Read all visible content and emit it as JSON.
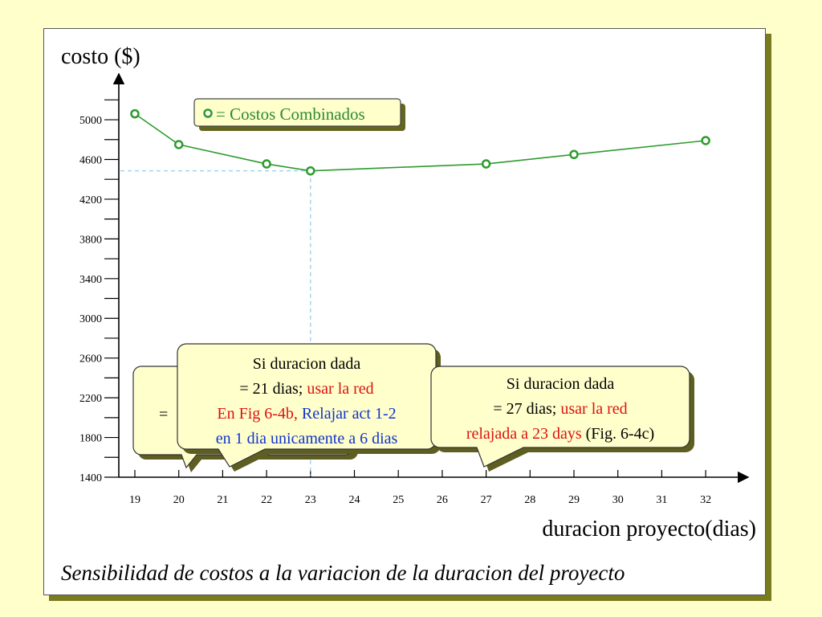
{
  "colors": {
    "background": "#ffffcc",
    "series": "#2e9b2e",
    "guide": "#8fc8e8",
    "callout_fill": "#ffffcc",
    "red": "#dd1111",
    "blue": "#1133cc"
  },
  "chart_data": {
    "type": "line",
    "ylabel": "costo ($)",
    "xlabel": "duracion proyecto(dias)",
    "caption": "Sensibilidad de costos a la variacion de la duracion del proyecto",
    "xlim": [
      19,
      32
    ],
    "ylim": [
      1400,
      5000
    ],
    "x_ticks": [
      19,
      20,
      21,
      22,
      23,
      24,
      25,
      26,
      27,
      28,
      29,
      30,
      31,
      32
    ],
    "y_ticks": [
      1400,
      1800,
      2200,
      2600,
      3000,
      3400,
      3800,
      4200,
      4600,
      5000
    ],
    "grid": false,
    "legend": {
      "label": "= Costos Combinados",
      "placement": "top-left"
    },
    "series": [
      {
        "name": "Costos Combinados",
        "x": [
          19,
          20,
          22,
          23,
          27,
          29,
          32
        ],
        "y": [
          5060,
          4750,
          4555,
          4485,
          4555,
          4650,
          4790
        ]
      }
    ],
    "guide_point": {
      "x": 23,
      "y": 4485
    },
    "callouts": [
      {
        "lines": [
          [
            {
              "text": "Si duracion dada",
              "color": "black"
            }
          ],
          [
            {
              "text": "= 21 dias; ",
              "color": "black"
            },
            {
              "text": "usar la red",
              "color": "red"
            }
          ],
          [
            {
              "text": "En Fig 6-4b,  ",
              "color": "red"
            },
            {
              "text": "Relajar act 1-2",
              "color": "blue"
            }
          ],
          [
            {
              "text": "en 1 dia unicamente a 6 dias",
              "color": "blue"
            }
          ]
        ]
      },
      {
        "lines": [
          [
            {
              "text": "Si duracion dada",
              "color": "black"
            }
          ],
          [
            {
              "text": "= 27 dias; ",
              "color": "black"
            },
            {
              "text": "usar la red",
              "color": "red"
            }
          ],
          [
            {
              "text": "relajada a 23 days ",
              "color": "red"
            },
            {
              "text": "(Fig. 6-4c)",
              "color": "black"
            }
          ]
        ]
      }
    ],
    "hidden_callout_visible_text": "="
  }
}
